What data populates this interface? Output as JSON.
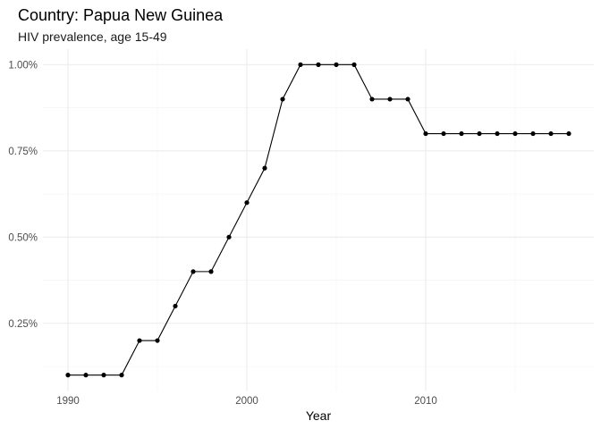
{
  "chart_data": {
    "type": "line",
    "title": "Country: Papua New Guinea",
    "subtitle": "HIV prevalence, age 15-49",
    "xlabel": "Year",
    "ylabel": "",
    "xlim": [
      1990,
      2018
    ],
    "ylim": [
      0.1,
      1.0
    ],
    "x_ticks": [
      1990,
      2000,
      2010
    ],
    "x_tick_labels": [
      "1990",
      "2000",
      "2010"
    ],
    "y_ticks": [
      0.25,
      0.5,
      0.75,
      1.0
    ],
    "y_tick_labels": [
      "0.25%",
      "0.50%",
      "0.75%",
      "1.00%"
    ],
    "grid": true,
    "legend": "none",
    "line_color": "#000000",
    "series": [
      {
        "x": [
          1990,
          1991,
          1992,
          1993,
          1994,
          1995,
          1996,
          1997,
          1998,
          1999,
          2000,
          2001,
          2002,
          2003,
          2004,
          2005,
          2006,
          2007,
          2008,
          2009,
          2010,
          2011,
          2012,
          2013,
          2014,
          2015,
          2016,
          2017,
          2018
        ],
        "values": [
          0.1,
          0.1,
          0.1,
          0.1,
          0.2,
          0.2,
          0.3,
          0.4,
          0.4,
          0.5,
          0.6,
          0.7,
          0.9,
          1.0,
          1.0,
          1.0,
          1.0,
          0.9,
          0.9,
          0.9,
          0.8,
          0.8,
          0.8,
          0.8,
          0.8,
          0.8,
          0.8,
          0.8,
          0.8
        ]
      }
    ]
  }
}
